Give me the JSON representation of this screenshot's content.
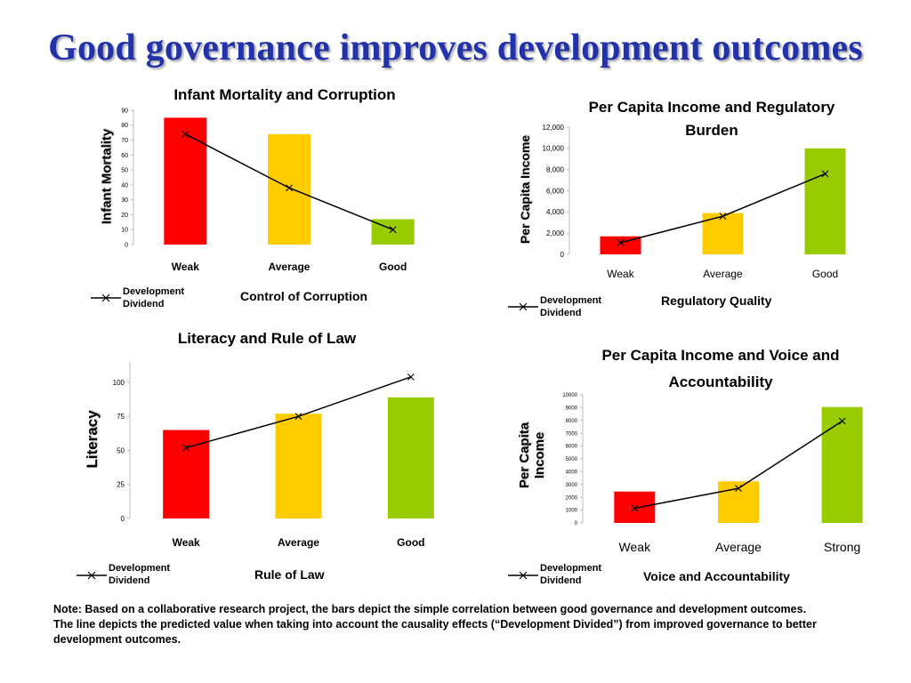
{
  "page_title": "Good governance improves development outcomes",
  "note": "Note: Based on a collaborative research project, the bars depict the simple correlation between good governance and development outcomes.\nThe line depicts the predicted value when taking into account the causality effects (“Development Divided”) from improved governance to better\ndevelopment outcomes.",
  "colors": {
    "red": "#ff0000",
    "yellow": "#ffcc00",
    "green": "#99cc00",
    "line": "#000000"
  },
  "chart_data": [
    {
      "type": "bar",
      "title": "Infant Mortality and Corruption",
      "ylabel": "Infant Mortality",
      "xlabel": "Control of Corruption",
      "categories": [
        "Weak",
        "Average",
        "Good"
      ],
      "ylim": [
        0,
        90
      ],
      "yticks": [
        "0",
        "10",
        "20",
        "30",
        "40",
        "50",
        "60",
        "70",
        "80",
        "90"
      ],
      "series": [
        {
          "values": [
            85,
            74,
            17
          ]
        }
      ],
      "line": {
        "name": "Development Dividend",
        "values": [
          74,
          38,
          10
        ]
      },
      "legend": "bottom-left"
    },
    {
      "type": "bar",
      "title": "Per Capita Income and Regulatory Burden",
      "ylabel": "Per Capita Income",
      "xlabel": "Regulatory Quality",
      "categories": [
        "Weak",
        "Average",
        "Good"
      ],
      "ylim": [
        0,
        12000
      ],
      "yticks": [
        "0",
        "2,000",
        "4,000",
        "6,000",
        "8,000",
        "10,000",
        "12,000"
      ],
      "series": [
        {
          "values": [
            1700,
            3900,
            10000
          ]
        }
      ],
      "line": {
        "name": "Development Dividend",
        "values": [
          1100,
          3600,
          7600
        ]
      },
      "legend": "bottom-left"
    },
    {
      "type": "bar",
      "title": "Literacy and Rule of Law",
      "ylabel": "Literacy",
      "xlabel": "Rule of Law",
      "categories": [
        "Weak",
        "Average",
        "Good"
      ],
      "ylim": [
        0,
        115
      ],
      "yticks": [
        "0",
        "25",
        "50",
        "75",
        "100"
      ],
      "series": [
        {
          "values": [
            65,
            77,
            89
          ]
        }
      ],
      "line": {
        "name": "Development Dividend",
        "values": [
          52,
          75,
          104
        ]
      },
      "legend": "bottom-left"
    },
    {
      "type": "bar",
      "title": "Per Capita Income and Voice and Accountability",
      "ylabel": "Per Capita Income",
      "xlabel": "Voice and Accountability",
      "categories": [
        "Weak",
        "Average",
        "Strong"
      ],
      "ylim": [
        0,
        10000
      ],
      "yticks": [
        "0",
        "1000",
        "2000",
        "3000",
        "4000",
        "5000",
        "6000",
        "7000",
        "8000",
        "9000",
        "10000"
      ],
      "series": [
        {
          "values": [
            2450,
            3250,
            9050
          ]
        }
      ],
      "line": {
        "name": "Development Dividend",
        "values": [
          1150,
          2700,
          7950
        ]
      },
      "legend": "bottom-left"
    }
  ]
}
